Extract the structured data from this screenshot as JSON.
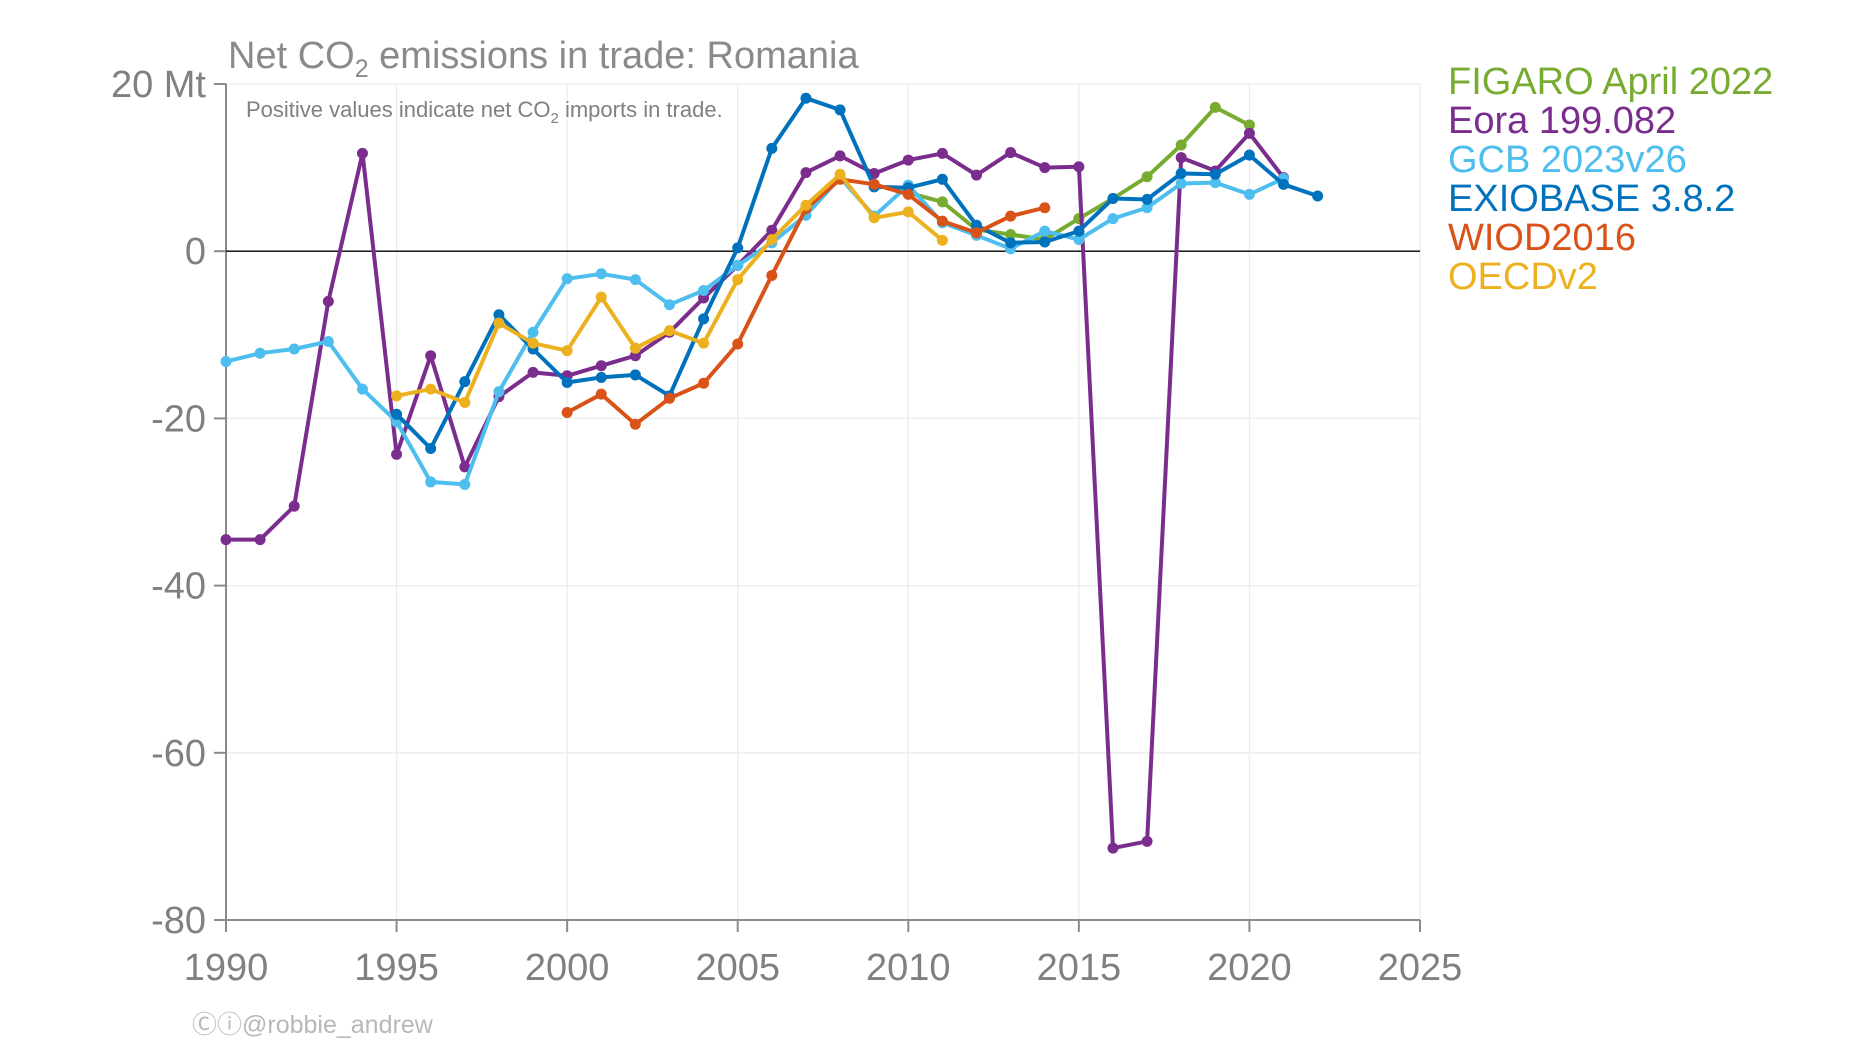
{
  "chart_data": {
    "type": "line",
    "title_prefix": "Net CO",
    "title_sub": "2",
    "title_suffix": " emissions in trade: Romania",
    "subtitle_prefix": "Positive values indicate net CO",
    "subtitle_sub": "2",
    "subtitle_suffix": " imports in trade.",
    "y_unit": "Mt",
    "xlim": [
      1990,
      2025
    ],
    "ylim": [
      -80,
      20
    ],
    "x_ticks": [
      1990,
      1995,
      2000,
      2005,
      2010,
      2015,
      2020,
      2025
    ],
    "y_ticks": [
      -80,
      -60,
      -40,
      -20,
      0,
      20
    ],
    "y_tick_labels": [
      "-80",
      "-60",
      "-40",
      "-20",
      "0",
      "20 Mt"
    ],
    "legend_position": "right",
    "grid": true,
    "series": [
      {
        "name": "FIGARO April 2022",
        "color": "#77AC30",
        "x": [
          2010,
          2011,
          2012,
          2013,
          2014,
          2015,
          2016,
          2017,
          2018,
          2019,
          2020
        ],
        "y": [
          7.0,
          5.9,
          2.6,
          2.0,
          1.4,
          3.9,
          6.3,
          8.9,
          12.7,
          17.2,
          15.1
        ]
      },
      {
        "name": "Eora 199.082",
        "color": "#7B2D8E",
        "x": [
          1990,
          1991,
          1992,
          1993,
          1994,
          1995,
          1996,
          1997,
          1998,
          1999,
          2000,
          2001,
          2002,
          2003,
          2004,
          2005,
          2006,
          2007,
          2008,
          2009,
          2010,
          2011,
          2012,
          2013,
          2014,
          2015,
          2016,
          2017,
          2018,
          2019,
          2020,
          2021
        ],
        "y": [
          -34.5,
          -34.5,
          -30.5,
          -6.0,
          11.7,
          -24.3,
          -12.5,
          -25.8,
          -17.4,
          -14.5,
          -14.9,
          -13.7,
          -12.5,
          -9.7,
          -5.6,
          -1.7,
          2.5,
          9.4,
          11.4,
          9.3,
          10.9,
          11.7,
          9.1,
          11.8,
          10.0,
          10.1,
          -71.4,
          -70.6,
          11.2,
          9.6,
          14.1,
          8.8
        ]
      },
      {
        "name": "GCB 2023v26",
        "color": "#4DBEEE",
        "x": [
          1990,
          1991,
          1992,
          1993,
          1994,
          1995,
          1996,
          1997,
          1998,
          1999,
          2000,
          2001,
          2002,
          2003,
          2004,
          2005,
          2006,
          2007,
          2008,
          2009,
          2010,
          2011,
          2012,
          2013,
          2014,
          2015,
          2016,
          2017,
          2018,
          2019,
          2020,
          2021
        ],
        "y": [
          -13.2,
          -12.2,
          -11.7,
          -10.8,
          -16.5,
          -20.4,
          -27.6,
          -27.9,
          -16.8,
          -9.7,
          -3.3,
          -2.7,
          -3.4,
          -6.4,
          -4.7,
          -1.7,
          1.0,
          4.3,
          8.8,
          4.2,
          7.9,
          3.4,
          1.9,
          0.3,
          2.4,
          1.4,
          3.9,
          5.2,
          8.1,
          8.2,
          6.8,
          8.7
        ]
      },
      {
        "name": "EXIOBASE 3.8.2",
        "color": "#0072BD",
        "x": [
          1995,
          1996,
          1997,
          1998,
          1999,
          2000,
          2001,
          2002,
          2003,
          2004,
          2005,
          2006,
          2007,
          2008,
          2009,
          2010,
          2011,
          2012,
          2013,
          2014,
          2015,
          2016,
          2017,
          2018,
          2019,
          2020,
          2021,
          2022
        ],
        "y": [
          -19.5,
          -23.6,
          -15.6,
          -7.6,
          -11.7,
          -15.7,
          -15.1,
          -14.8,
          -17.3,
          -8.1,
          0.4,
          12.3,
          18.3,
          16.9,
          7.7,
          7.6,
          8.6,
          3.1,
          1.0,
          1.1,
          2.4,
          6.3,
          6.2,
          9.3,
          9.2,
          11.5,
          8.0,
          6.6
        ]
      },
      {
        "name": "WIOD2016",
        "color": "#D95319",
        "x": [
          2000,
          2001,
          2002,
          2003,
          2004,
          2005,
          2006,
          2007,
          2008,
          2009,
          2010,
          2011,
          2012,
          2013,
          2014
        ],
        "y": [
          -19.3,
          -17.1,
          -20.7,
          -17.6,
          -15.8,
          -11.1,
          -2.9,
          5.1,
          8.6,
          8.0,
          6.8,
          3.6,
          2.2,
          4.2,
          5.2
        ]
      },
      {
        "name": "OECDv2",
        "color": "#EDB120",
        "x": [
          1995,
          1996,
          1997,
          1998,
          1999,
          2000,
          2001,
          2002,
          2003,
          2004,
          2005,
          2006,
          2007,
          2008,
          2009,
          2010,
          2011
        ],
        "y": [
          -17.3,
          -16.5,
          -18.1,
          -8.6,
          -11.0,
          -11.9,
          -5.5,
          -11.6,
          -9.5,
          -11.0,
          -3.4,
          1.4,
          5.5,
          9.2,
          4.0,
          4.7,
          1.3
        ]
      }
    ]
  },
  "credit": "Ⓒⓘ@robbie_andrew"
}
